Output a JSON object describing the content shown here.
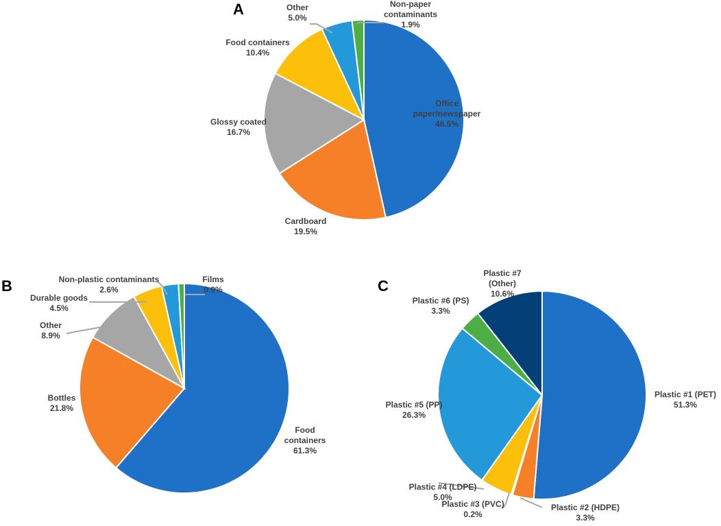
{
  "chart_data": [
    {
      "type": "pie",
      "panel_letter": "A",
      "slices": [
        {
          "label_lines": [
            "Office",
            "paper/newspaper"
          ],
          "value": 46.5,
          "value_label": "46.5%",
          "color": "#1f71c8"
        },
        {
          "label_lines": [
            "Cardboard"
          ],
          "value": 19.5,
          "value_label": "19.5%",
          "color": "#f58027"
        },
        {
          "label_lines": [
            "Glossy coated"
          ],
          "value": 16.7,
          "value_label": "16.7%",
          "color": "#a6a6a6"
        },
        {
          "label_lines": [
            "Food containers"
          ],
          "value": 10.4,
          "value_label": "10.4%",
          "color": "#fdc00a"
        },
        {
          "label_lines": [
            "Other"
          ],
          "value": 5.0,
          "value_label": "5.0%",
          "color": "#2399d9"
        },
        {
          "label_lines": [
            "Non-paper",
            "contaminants"
          ],
          "value": 1.9,
          "value_label": "1.9%",
          "color": "#4cae45"
        }
      ]
    },
    {
      "type": "pie",
      "panel_letter": "B",
      "slices": [
        {
          "label_lines": [
            "Food",
            "containers"
          ],
          "value": 61.3,
          "value_label": "61.3%",
          "color": "#1f71c8"
        },
        {
          "label_lines": [
            "Bottles"
          ],
          "value": 21.8,
          "value_label": "21.8%",
          "color": "#f58027"
        },
        {
          "label_lines": [
            "Other"
          ],
          "value": 8.9,
          "value_label": "8.9%",
          "color": "#a6a6a6"
        },
        {
          "label_lines": [
            "Durable goods"
          ],
          "value": 4.5,
          "value_label": "4.5%",
          "color": "#fdc00a"
        },
        {
          "label_lines": [
            "Non-plastic contaminants"
          ],
          "value": 2.6,
          "value_label": "2.6%",
          "color": "#2399d9"
        },
        {
          "label_lines": [
            "Films"
          ],
          "value": 0.9,
          "value_label": "0.9%",
          "color": "#4cae45"
        }
      ]
    },
    {
      "type": "pie",
      "panel_letter": "C",
      "slices": [
        {
          "label_lines": [
            "Plastic #1 (PET)"
          ],
          "value": 51.3,
          "value_label": "51.3%",
          "color": "#1f71c8"
        },
        {
          "label_lines": [
            "Plastic #2 (HDPE)"
          ],
          "value": 3.3,
          "value_label": "3.3%",
          "color": "#f58027"
        },
        {
          "label_lines": [
            "Plastic #3 (PVC)"
          ],
          "value": 0.2,
          "value_label": "0.2%",
          "color": "#a6a6a6"
        },
        {
          "label_lines": [
            "Plastic #4 (LDPE)"
          ],
          "value": 5.0,
          "value_label": "5.0%",
          "color": "#fdc00a"
        },
        {
          "label_lines": [
            "Plastic #5 (PP)"
          ],
          "value": 26.3,
          "value_label": "26.3%",
          "color": "#2399d9"
        },
        {
          "label_lines": [
            "Plastic #6 (PS)"
          ],
          "value": 3.3,
          "value_label": "3.3%",
          "color": "#4cae45"
        },
        {
          "label_lines": [
            "Plastic #7",
            "(Other)"
          ],
          "value": 10.6,
          "value_label": "10.6%",
          "color": "#044078"
        }
      ]
    }
  ]
}
